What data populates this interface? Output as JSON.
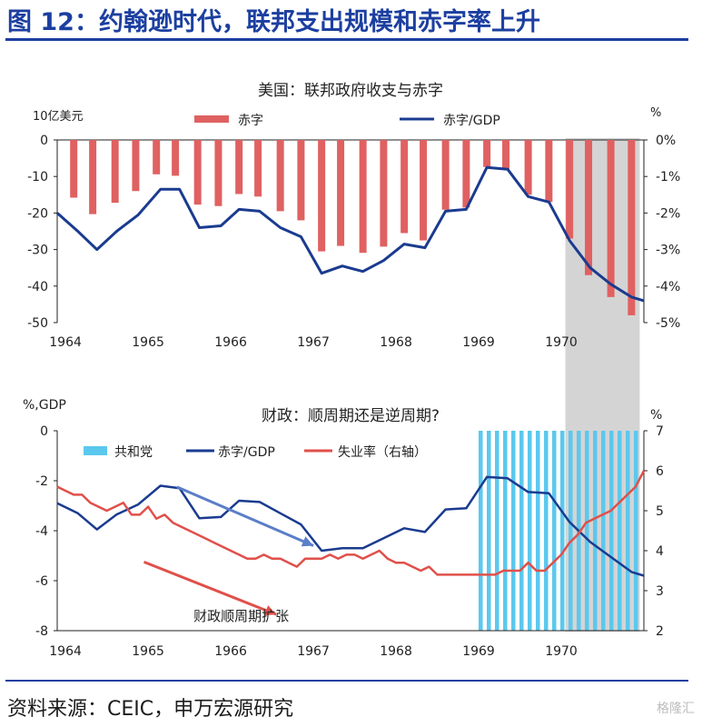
{
  "figure_title": "图 12：约翰逊时代，联邦支出规模和赤字率上升",
  "source_note": "资料来源：CEIC，申万宏源研究",
  "watermark": "格隆汇",
  "colors": {
    "brand_blue": "#1c3fa0",
    "deficit_bar": "#e06161",
    "deficit_gdp_line": "#1a3b8f",
    "unemployment_line": "#e0504a",
    "republican_shade": "#5bc8ee",
    "recession_shade": "#d4d4d4",
    "arrow_blue": "#5b7ec8",
    "arrow_red": "#e0504a"
  },
  "chart_data": [
    {
      "type": "bar",
      "title": "美国：联邦政府收支与赤字",
      "ylabel_left": "10亿美元",
      "ylabel_right": "%",
      "ylim_left": [
        -50,
        0
      ],
      "yticks_left": [
        0,
        -10,
        -20,
        -30,
        -40,
        -50
      ],
      "ylim_right": [
        -5,
        0
      ],
      "yticks_right": [
        "0%",
        "-1%",
        "-2%",
        "-3%",
        "-4%",
        "-5%"
      ],
      "x_tick_labels": [
        "1964",
        "1965",
        "1966",
        "1967",
        "1968",
        "1969",
        "1970"
      ],
      "x_range": [
        1963.9,
        1971.0
      ],
      "legend_position": "top",
      "series": [
        {
          "name": "赤字",
          "kind": "bar",
          "axis": "left",
          "x": [
            1964.1,
            1964.33,
            1964.6,
            1964.85,
            1965.1,
            1965.33,
            1965.6,
            1965.85,
            1966.1,
            1966.33,
            1966.6,
            1966.85,
            1967.1,
            1967.33,
            1967.6,
            1967.85,
            1968.1,
            1968.33,
            1968.6,
            1968.85,
            1969.1,
            1969.33,
            1969.6,
            1969.85,
            1970.1,
            1970.33,
            1970.6,
            1970.85
          ],
          "values": [
            -15.8,
            -20.3,
            -17.2,
            -14.0,
            -9.4,
            -9.8,
            -17.7,
            -18.1,
            -14.8,
            -15.5,
            -19.5,
            -22.0,
            -30.5,
            -29.0,
            -30.9,
            -29.2,
            -25.5,
            -27.5,
            -19.1,
            -18.5,
            -7.4,
            -8.0,
            -15.0,
            -17.0,
            -27.0,
            -37.0,
            -43.0,
            -48.0
          ]
        },
        {
          "name": "赤字/GDP",
          "kind": "line",
          "axis": "right",
          "x": [
            1963.9,
            1964.15,
            1964.38,
            1964.62,
            1964.88,
            1965.15,
            1965.38,
            1965.62,
            1965.88,
            1966.1,
            1966.35,
            1966.6,
            1966.85,
            1967.1,
            1967.35,
            1967.6,
            1967.85,
            1968.1,
            1968.35,
            1968.6,
            1968.85,
            1969.1,
            1969.35,
            1969.6,
            1969.85,
            1970.1,
            1970.35,
            1970.6,
            1970.85,
            1971.0
          ],
          "values": [
            -2.0,
            -2.5,
            -3.0,
            -2.5,
            -2.05,
            -1.35,
            -1.35,
            -2.4,
            -2.35,
            -1.9,
            -1.95,
            -2.4,
            -2.65,
            -3.65,
            -3.45,
            -3.6,
            -3.3,
            -2.85,
            -2.95,
            -1.95,
            -1.9,
            -0.75,
            -0.8,
            -1.55,
            -1.7,
            -2.75,
            -3.5,
            -3.95,
            -4.3,
            -4.4
          ]
        }
      ],
      "shaded_regions": [
        {
          "label": "recession",
          "x_start": 1970.05,
          "x_end": 1970.95
        }
      ]
    },
    {
      "type": "line",
      "title": "财政：顺周期还是逆周期?",
      "ylabel_left": "%,GDP",
      "ylabel_right": "%",
      "ylim_left": [
        -8,
        0
      ],
      "yticks_left": [
        0,
        -2,
        -4,
        -6,
        -8
      ],
      "ylim_right": [
        2,
        7
      ],
      "yticks_right": [
        7,
        6,
        5,
        4,
        3,
        2
      ],
      "x_tick_labels": [
        "1964",
        "1965",
        "1966",
        "1967",
        "1968",
        "1969",
        "1970"
      ],
      "x_range": [
        1963.9,
        1971.0
      ],
      "legend_position": "top",
      "series": [
        {
          "name": "共和党",
          "kind": "shade",
          "x_start": 1969.0,
          "x_end": 1971.0
        },
        {
          "name": "赤字/GDP",
          "kind": "line",
          "axis": "left",
          "x": [
            1963.9,
            1964.15,
            1964.38,
            1964.62,
            1964.88,
            1965.15,
            1965.38,
            1965.62,
            1965.88,
            1966.1,
            1966.35,
            1966.6,
            1966.85,
            1967.1,
            1967.35,
            1967.6,
            1967.85,
            1968.1,
            1968.35,
            1968.6,
            1968.85,
            1969.1,
            1969.35,
            1969.6,
            1969.85,
            1970.1,
            1970.35,
            1970.6,
            1970.85,
            1971.0
          ],
          "values": [
            -2.9,
            -3.3,
            -3.95,
            -3.35,
            -2.95,
            -2.2,
            -2.3,
            -3.5,
            -3.45,
            -2.8,
            -2.85,
            -3.3,
            -3.75,
            -4.8,
            -4.7,
            -4.7,
            -4.3,
            -3.9,
            -4.05,
            -3.15,
            -3.1,
            -1.85,
            -1.9,
            -2.45,
            -2.5,
            -3.65,
            -4.45,
            -5.05,
            -5.65,
            -5.8
          ]
        },
        {
          "name": "失业率（右轴）",
          "kind": "line",
          "axis": "right",
          "x": [
            1963.9,
            1964.0,
            1964.1,
            1964.2,
            1964.3,
            1964.4,
            1964.5,
            1964.6,
            1964.7,
            1964.8,
            1964.9,
            1965.0,
            1965.1,
            1965.2,
            1965.3,
            1965.4,
            1965.5,
            1965.6,
            1965.7,
            1965.8,
            1965.9,
            1966.0,
            1966.1,
            1966.2,
            1966.3,
            1966.4,
            1966.5,
            1966.6,
            1966.7,
            1966.8,
            1966.9,
            1967.0,
            1967.1,
            1967.2,
            1967.3,
            1967.4,
            1967.5,
            1967.6,
            1967.7,
            1967.8,
            1967.9,
            1968.0,
            1968.1,
            1968.2,
            1968.3,
            1968.4,
            1968.5,
            1968.6,
            1968.7,
            1968.8,
            1968.9,
            1969.0,
            1969.1,
            1969.2,
            1969.3,
            1969.4,
            1969.5,
            1969.6,
            1969.7,
            1969.8,
            1969.9,
            1970.0,
            1970.1,
            1970.2,
            1970.3,
            1970.4,
            1970.5,
            1970.6,
            1970.7,
            1970.8,
            1970.9,
            1971.0
          ],
          "values": [
            5.6,
            5.5,
            5.4,
            5.4,
            5.2,
            5.1,
            5.0,
            5.1,
            5.2,
            4.9,
            4.9,
            5.1,
            4.8,
            4.9,
            4.7,
            4.6,
            4.5,
            4.4,
            4.3,
            4.2,
            4.1,
            4.0,
            3.9,
            3.8,
            3.8,
            3.9,
            3.8,
            3.8,
            3.7,
            3.6,
            3.8,
            3.8,
            3.8,
            3.9,
            3.8,
            3.9,
            3.9,
            3.8,
            3.9,
            4.0,
            3.8,
            3.7,
            3.7,
            3.6,
            3.5,
            3.6,
            3.4,
            3.4,
            3.4,
            3.4,
            3.4,
            3.4,
            3.4,
            3.4,
            3.5,
            3.5,
            3.5,
            3.7,
            3.5,
            3.5,
            3.7,
            3.9,
            4.2,
            4.4,
            4.7,
            4.8,
            4.9,
            5.0,
            5.2,
            5.4,
            5.6,
            6.0
          ]
        }
      ],
      "annotations": [
        {
          "text": "财政顺周期扩张",
          "x": 1965.55,
          "y_left": -7.6
        }
      ],
      "arrows": [
        {
          "color": "blue",
          "x1": 1965.35,
          "y1_left": -2.25,
          "x2": 1967.0,
          "y2_left": -4.6
        },
        {
          "color": "red",
          "x1": 1964.95,
          "y1_left": -5.25,
          "x2": 1966.55,
          "y2_left": -7.35
        }
      ]
    }
  ]
}
